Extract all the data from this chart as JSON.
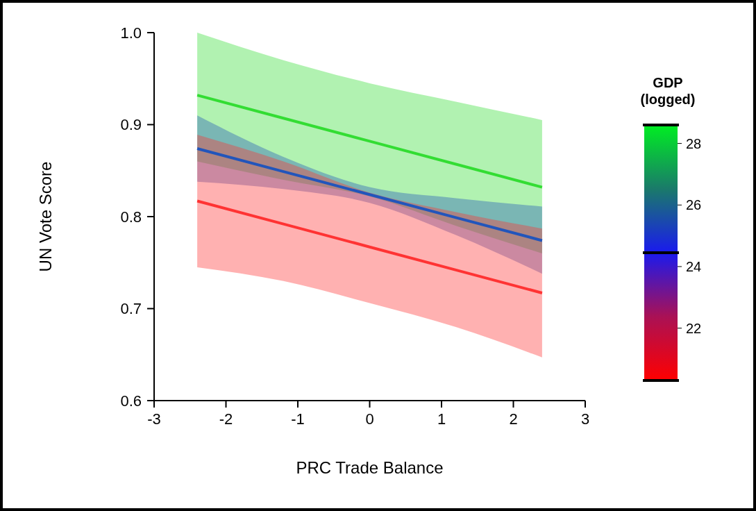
{
  "chart_data": {
    "type": "line",
    "xlabel": "PRC Trade Balance",
    "ylabel": "UN Vote Score",
    "clabel": "GDP\n(logged)",
    "x": [
      -2.4,
      -1.2,
      0,
      1.2,
      2.4
    ],
    "series": [
      {
        "color": "#33dd33",
        "values": [
          0.932,
          0.907,
          0.882,
          0.857,
          0.832
        ],
        "lower": [
          0.86,
          0.84,
          0.822,
          0.79,
          0.76
        ],
        "upper": [
          1.0,
          0.97,
          0.945,
          0.925,
          0.905
        ]
      },
      {
        "color": "#2255bb",
        "values": [
          0.874,
          0.849,
          0.824,
          0.799,
          0.774
        ],
        "lower": [
          0.838,
          0.83,
          0.815,
          0.78,
          0.738
        ],
        "upper": [
          0.91,
          0.865,
          0.832,
          0.82,
          0.811
        ]
      },
      {
        "color": "#ff3333",
        "values": [
          0.817,
          0.792,
          0.767,
          0.742,
          0.717
        ],
        "lower": [
          0.745,
          0.73,
          0.706,
          0.68,
          0.647
        ],
        "upper": [
          0.889,
          0.86,
          0.826,
          0.805,
          0.787
        ]
      }
    ],
    "xlim": [
      -3,
      3
    ],
    "xticks": [
      -3,
      -2,
      -1,
      0,
      1,
      2,
      3
    ],
    "ylim": [
      0.6,
      1.0
    ],
    "yticks": [
      0.6,
      0.7,
      0.8,
      0.9,
      {
        "value": 1.0,
        "label": "1.0"
      }
    ],
    "clim": [
      20.3,
      28.6
    ],
    "cticks": [
      22,
      24,
      26,
      28
    ],
    "grid": false,
    "marker": "none",
    "line_style": "solid"
  }
}
